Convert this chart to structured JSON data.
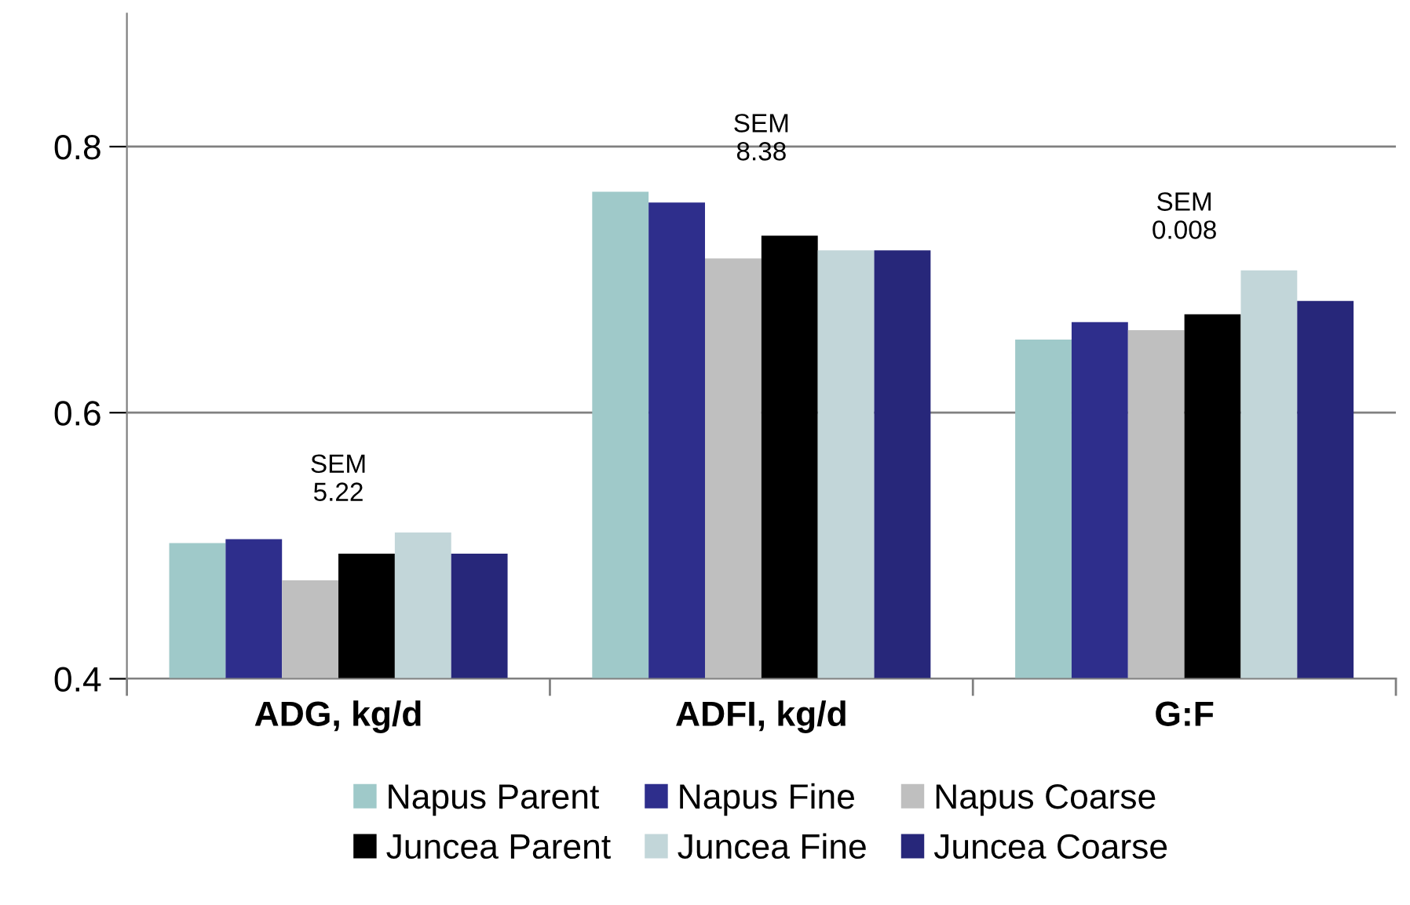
{
  "chart_data": {
    "type": "bar",
    "categories": [
      "ADG, kg/d",
      "ADFI, kg/d",
      "G:F"
    ],
    "series": [
      {
        "name": "Napus Parent",
        "color": "#9fc9c9",
        "values": [
          0.502,
          0.766,
          0.655
        ]
      },
      {
        "name": "Napus Fine",
        "color": "#2e2e8c",
        "values": [
          0.505,
          0.758,
          0.668
        ]
      },
      {
        "name": "Napus Coarse",
        "color": "#bfbfbf",
        "values": [
          0.474,
          0.716,
          0.662
        ]
      },
      {
        "name": "Juncea Parent",
        "color": "#000000",
        "values": [
          0.494,
          0.733,
          0.674
        ]
      },
      {
        "name": "Juncea Fine",
        "color": "#c2d6d9",
        "values": [
          0.51,
          0.722,
          0.707
        ]
      },
      {
        "name": "Juncea Coarse",
        "color": "#27277a",
        "values": [
          0.494,
          0.722,
          0.684
        ]
      }
    ],
    "ylim": [
      0.4,
      0.9
    ],
    "yticks": [
      0.4,
      0.6,
      0.8
    ],
    "grid": "y",
    "legend": "bottom",
    "annotations": [
      "SEM\n5.22",
      "SEM\n8.38",
      "SEM\n0.008"
    ]
  }
}
